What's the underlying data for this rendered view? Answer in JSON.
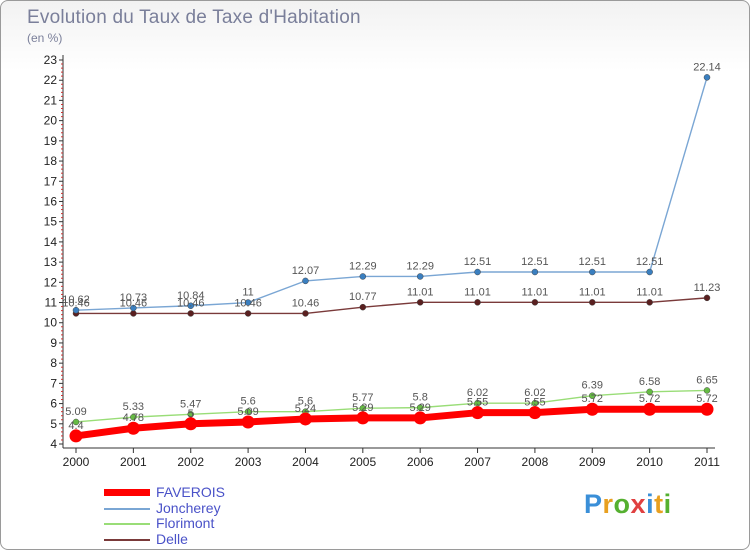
{
  "chart_data": {
    "type": "line",
    "title": "Evolution du Taux de Taxe d'Habitation",
    "subtitle": "(en %)",
    "categories": [
      "2000",
      "2001",
      "2002",
      "2003",
      "2004",
      "2005",
      "2006",
      "2007",
      "2008",
      "2009",
      "2010",
      "2011"
    ],
    "ylim": [
      4,
      23
    ],
    "yticks": [
      4,
      5,
      6,
      7,
      8,
      9,
      10,
      11,
      12,
      13,
      14,
      15,
      16,
      17,
      18,
      19,
      20,
      21,
      22,
      23
    ],
    "grid": false,
    "series": [
      {
        "name": "FAVEROIS",
        "color": "#ff0000",
        "values": [
          4.4,
          4.78,
          5.0,
          5.09,
          5.24,
          5.29,
          5.29,
          5.55,
          5.55,
          5.72,
          5.72,
          5.72
        ],
        "labels": [
          "4.4",
          "4.78",
          "5",
          "5.09",
          "5.24",
          "5.29",
          "5.29",
          "5.55",
          "5.55",
          "5.72",
          "5.72",
          "5.72"
        ]
      },
      {
        "name": "Joncherey",
        "color": "#7aa6d4",
        "values": [
          10.62,
          10.73,
          10.84,
          11,
          12.07,
          12.29,
          12.29,
          12.51,
          12.51,
          12.51,
          12.51,
          22.14
        ],
        "labels": [
          "10.62",
          "10.73",
          "10.84",
          "11",
          "12.07",
          "12.29",
          "12.29",
          "12.51",
          "12.51",
          "12.51",
          "12.51",
          "22.14"
        ]
      },
      {
        "name": "Florimont",
        "color": "#99dd77",
        "values": [
          5.09,
          5.33,
          5.47,
          5.6,
          5.6,
          5.77,
          5.8,
          6.02,
          6.02,
          6.39,
          6.58,
          6.65
        ],
        "labels": [
          "5.09",
          "5.33",
          "5.47",
          "5.6",
          "5.6",
          "5.77",
          "5.8",
          "6.02",
          "6.02",
          "6.39",
          "6.58",
          "6.65"
        ]
      },
      {
        "name": "Delle",
        "color": "#7a3a3a",
        "values": [
          10.46,
          10.46,
          10.46,
          10.46,
          10.46,
          10.77,
          11.01,
          11.01,
          11.01,
          11.01,
          11.01,
          11.23
        ],
        "labels": [
          "10.46",
          "10.46",
          "10.46",
          "10.46",
          "10.46",
          "10.77",
          "11.01",
          "11.01",
          "11.01",
          "11.01",
          "11.01",
          "11.23"
        ]
      }
    ],
    "legend_position": "bottom-left"
  },
  "logo": {
    "text": "Proxiti"
  }
}
